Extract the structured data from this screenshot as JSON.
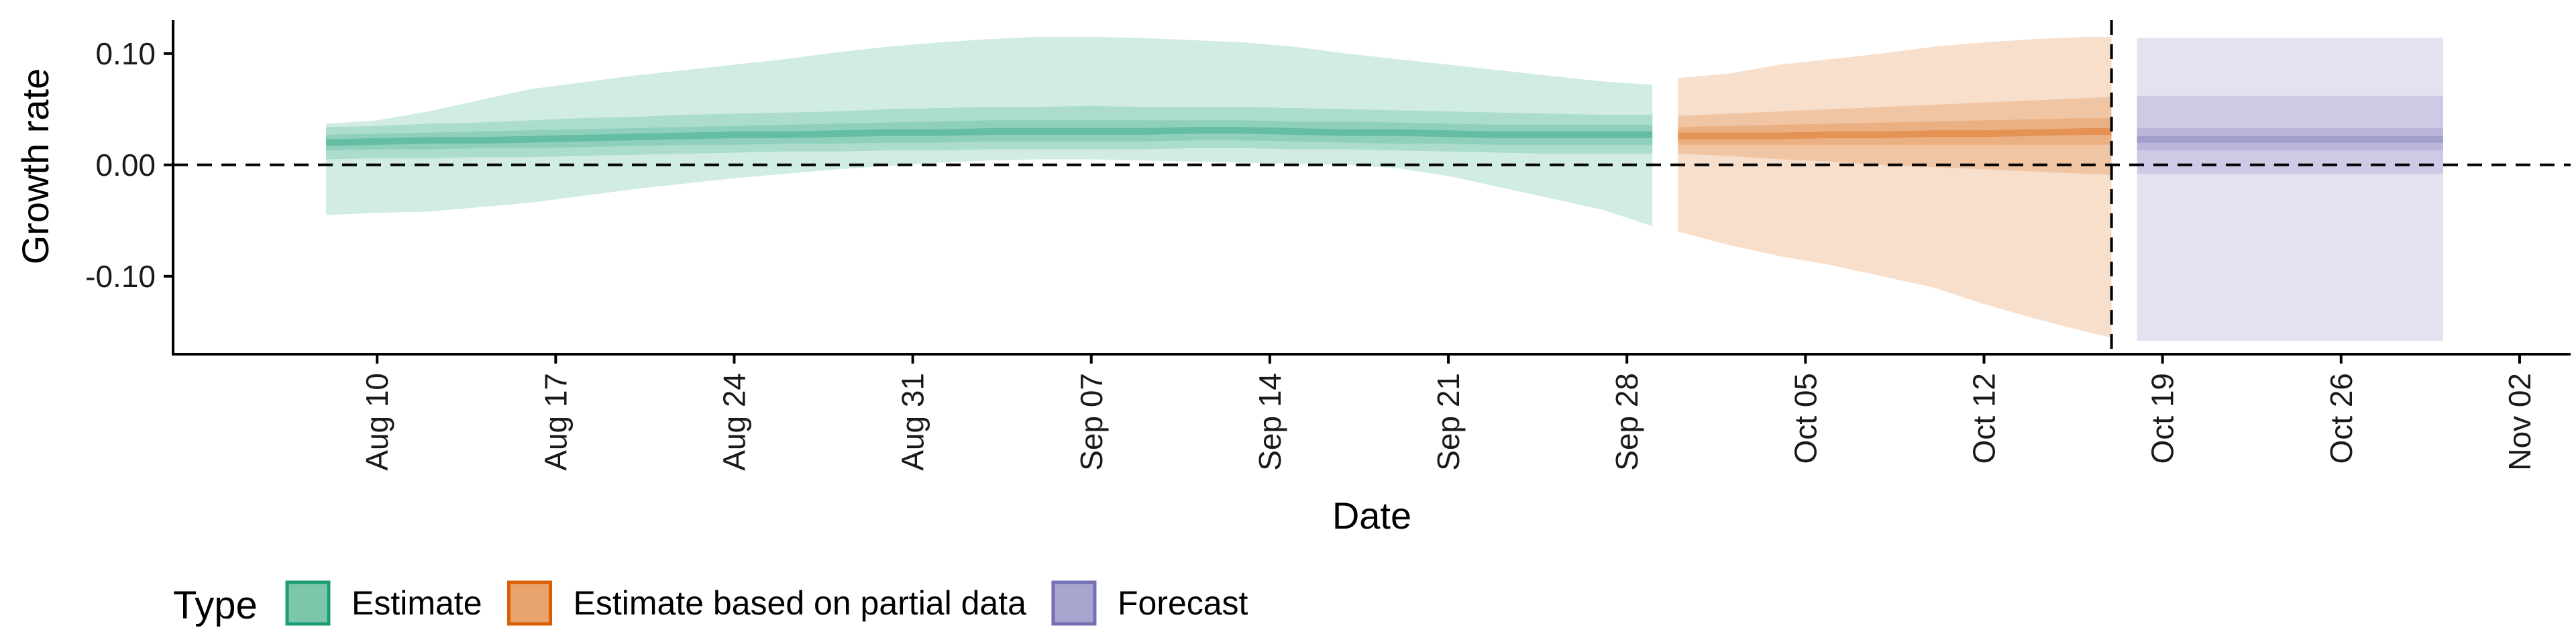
{
  "chart_data": {
    "type": "area",
    "xlabel": "Date",
    "ylabel": "Growth rate",
    "xlim": [
      "2020-08-02",
      "2020-11-04"
    ],
    "ylim": [
      -0.17,
      0.13
    ],
    "x_ticks": [
      {
        "date": "2020-08-10",
        "label": "Aug 10"
      },
      {
        "date": "2020-08-17",
        "label": "Aug 17"
      },
      {
        "date": "2020-08-24",
        "label": "Aug 24"
      },
      {
        "date": "2020-08-31",
        "label": "Aug 31"
      },
      {
        "date": "2020-09-07",
        "label": "Sep 07"
      },
      {
        "date": "2020-09-14",
        "label": "Sep 14"
      },
      {
        "date": "2020-09-21",
        "label": "Sep 21"
      },
      {
        "date": "2020-09-28",
        "label": "Sep 28"
      },
      {
        "date": "2020-10-05",
        "label": "Oct 05"
      },
      {
        "date": "2020-10-12",
        "label": "Oct 12"
      },
      {
        "date": "2020-10-19",
        "label": "Oct 19"
      },
      {
        "date": "2020-10-26",
        "label": "Oct 26"
      },
      {
        "date": "2020-11-02",
        "label": "Nov 02"
      }
    ],
    "y_ticks": [
      {
        "value": 0.1,
        "label": "0.10"
      },
      {
        "value": 0.0,
        "label": "0.00"
      },
      {
        "value": -0.1,
        "label": "-0.10"
      }
    ],
    "reference_lines": {
      "horizontal_y": 0.0,
      "vertical_x": "2020-10-17"
    },
    "grid": false,
    "legend": {
      "title": "Type",
      "position": "bottom-left",
      "entries": [
        {
          "label": "Estimate",
          "fill": "#7cc6a9",
          "stroke": "#1b9e77"
        },
        {
          "label": "Estimate based on partial data",
          "fill": "#e9a36c",
          "stroke": "#d95f02"
        },
        {
          "label": "Forecast",
          "fill": "#a8a6cf",
          "stroke": "#7570b3"
        }
      ]
    },
    "series": [
      {
        "name": "Estimate",
        "color": "#1b9e77",
        "x": [
          "2020-08-08",
          "2020-08-10",
          "2020-08-12",
          "2020-08-14",
          "2020-08-16",
          "2020-08-18",
          "2020-08-20",
          "2020-08-22",
          "2020-08-24",
          "2020-08-26",
          "2020-08-28",
          "2020-08-30",
          "2020-09-01",
          "2020-09-03",
          "2020-09-05",
          "2020-09-07",
          "2020-09-09",
          "2020-09-11",
          "2020-09-13",
          "2020-09-15",
          "2020-09-17",
          "2020-09-19",
          "2020-09-21",
          "2020-09-23",
          "2020-09-25",
          "2020-09-27",
          "2020-09-29"
        ],
        "median": [
          0.02,
          0.021,
          0.022,
          0.022,
          0.023,
          0.024,
          0.025,
          0.026,
          0.027,
          0.027,
          0.028,
          0.029,
          0.029,
          0.03,
          0.03,
          0.03,
          0.03,
          0.031,
          0.031,
          0.03,
          0.029,
          0.029,
          0.028,
          0.027,
          0.027,
          0.027,
          0.027
        ],
        "lower_20": [
          0.013,
          0.014,
          0.014,
          0.015,
          0.015,
          0.016,
          0.017,
          0.018,
          0.018,
          0.019,
          0.019,
          0.02,
          0.02,
          0.021,
          0.021,
          0.021,
          0.021,
          0.022,
          0.022,
          0.021,
          0.02,
          0.019,
          0.019,
          0.018,
          0.018,
          0.018,
          0.018
        ],
        "upper_20": [
          0.027,
          0.028,
          0.029,
          0.03,
          0.031,
          0.032,
          0.033,
          0.034,
          0.035,
          0.036,
          0.037,
          0.038,
          0.039,
          0.04,
          0.04,
          0.04,
          0.04,
          0.04,
          0.04,
          0.039,
          0.039,
          0.038,
          0.037,
          0.036,
          0.036,
          0.036,
          0.036
        ],
        "lower_50": [
          0.005,
          0.006,
          0.006,
          0.007,
          0.007,
          0.008,
          0.009,
          0.01,
          0.011,
          0.012,
          0.012,
          0.013,
          0.013,
          0.014,
          0.014,
          0.014,
          0.014,
          0.015,
          0.015,
          0.014,
          0.014,
          0.013,
          0.012,
          0.011,
          0.01,
          0.01,
          0.01
        ],
        "upper_50": [
          0.034,
          0.035,
          0.037,
          0.038,
          0.04,
          0.042,
          0.043,
          0.045,
          0.046,
          0.047,
          0.048,
          0.05,
          0.051,
          0.052,
          0.052,
          0.053,
          0.052,
          0.052,
          0.052,
          0.051,
          0.05,
          0.049,
          0.048,
          0.047,
          0.046,
          0.045,
          0.045
        ],
        "lower_90": [
          -0.045,
          -0.043,
          -0.042,
          -0.038,
          -0.034,
          -0.028,
          -0.022,
          -0.017,
          -0.012,
          -0.008,
          -0.004,
          -0.001,
          0.002,
          0.004,
          0.005,
          0.005,
          0.004,
          0.003,
          0.002,
          0.001,
          0.0,
          -0.003,
          -0.01,
          -0.02,
          -0.03,
          -0.04,
          -0.055
        ],
        "upper_90": [
          0.037,
          0.04,
          0.048,
          0.058,
          0.068,
          0.074,
          0.08,
          0.085,
          0.09,
          0.095,
          0.101,
          0.106,
          0.11,
          0.113,
          0.115,
          0.115,
          0.114,
          0.112,
          0.11,
          0.106,
          0.1,
          0.095,
          0.09,
          0.085,
          0.08,
          0.075,
          0.072
        ]
      },
      {
        "name": "Estimate based on partial data",
        "color": "#d95f02",
        "x": [
          "2020-09-30",
          "2020-10-02",
          "2020-10-04",
          "2020-10-06",
          "2020-10-08",
          "2020-10-10",
          "2020-10-12",
          "2020-10-14",
          "2020-10-16",
          "2020-10-17"
        ],
        "median": [
          0.026,
          0.026,
          0.026,
          0.027,
          0.027,
          0.028,
          0.028,
          0.029,
          0.03,
          0.03
        ],
        "lower_20": [
          0.018,
          0.018,
          0.018,
          0.018,
          0.018,
          0.018,
          0.018,
          0.018,
          0.018,
          0.018
        ],
        "upper_20": [
          0.034,
          0.035,
          0.036,
          0.037,
          0.038,
          0.039,
          0.04,
          0.041,
          0.042,
          0.042
        ],
        "lower_50": [
          0.01,
          0.008,
          0.005,
          0.003,
          0.0,
          -0.002,
          -0.004,
          -0.006,
          -0.008,
          -0.009
        ],
        "upper_50": [
          0.044,
          0.046,
          0.048,
          0.05,
          0.052,
          0.054,
          0.056,
          0.058,
          0.06,
          0.061
        ],
        "lower_90": [
          -0.06,
          -0.072,
          -0.082,
          -0.09,
          -0.1,
          -0.11,
          -0.125,
          -0.138,
          -0.15,
          -0.155
        ],
        "upper_90": [
          0.078,
          0.082,
          0.09,
          0.095,
          0.1,
          0.106,
          0.11,
          0.113,
          0.115,
          0.115
        ]
      },
      {
        "name": "Forecast",
        "color": "#7570b3",
        "x": [
          "2020-10-18",
          "2020-10-30"
        ],
        "median": [
          0.023,
          0.023
        ],
        "lower_20": [
          0.013,
          0.013
        ],
        "upper_20": [
          0.033,
          0.033
        ],
        "lower_50": [
          -0.008,
          -0.008
        ],
        "upper_50": [
          0.062,
          0.062
        ],
        "lower_90": [
          -0.158,
          -0.158
        ],
        "upper_90": [
          0.114,
          0.114
        ]
      }
    ]
  }
}
